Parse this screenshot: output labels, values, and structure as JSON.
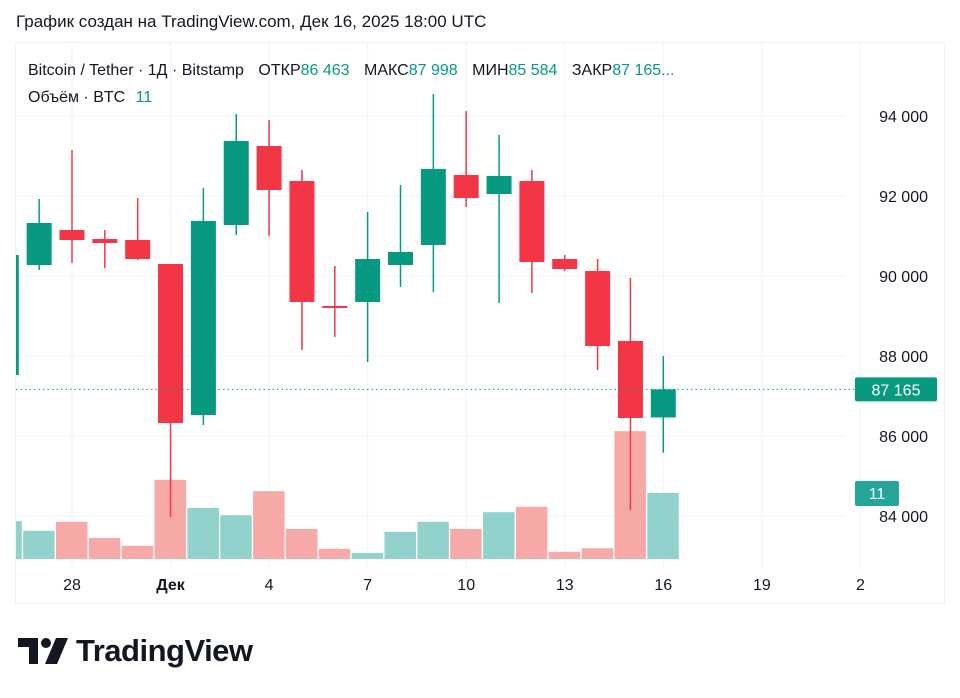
{
  "caption": "График создан на TradingView.com, Дек 16, 2025 18:00 UTC",
  "legend": {
    "symbol": "Bitcoin / Tether · 1Д · Bitstamp",
    "open_label": "ОТКР",
    "open": "86 463",
    "high_label": "МАКС",
    "high": "87 998",
    "low_label": "МИН",
    "low": "85 584",
    "close_label": "ЗАКР",
    "close": "87 165...",
    "volume_label": "Объём · BTC",
    "volume": "11"
  },
  "brand": "TradingView",
  "colors": {
    "up": "#089981",
    "down": "#F23645",
    "up_volume": "#92D2CC",
    "down_volume": "#F7A9A7"
  },
  "chart_data": {
    "type": "candlestick",
    "title": "",
    "y_axis": {
      "ticks": [
        84000,
        86000,
        88000,
        90000,
        92000,
        94000
      ],
      "tick_labels": [
        "84 000",
        "86 000",
        "88 000",
        "90 000",
        "92 000",
        "94 000"
      ],
      "position": "right"
    },
    "x_axis": {
      "tick_labels": [
        "28",
        "Дек",
        "4",
        "7",
        "10",
        "13",
        "16",
        "19",
        "2"
      ]
    },
    "last_price_label": "87 165",
    "last_volume_label": "11",
    "grid": true,
    "candles": [
      {
        "date": "Nov 26",
        "o": 87525,
        "h": 90525,
        "l": 87525,
        "c": 90525,
        "v": 6.3
      },
      {
        "date": "Nov 27",
        "o": 90275,
        "h": 91925,
        "l": 90150,
        "c": 91325,
        "v": 4.7
      },
      {
        "date": "Nov 28",
        "o": 91150,
        "h": 93150,
        "l": 90325,
        "c": 90900,
        "v": 6.2
      },
      {
        "date": "Nov 29",
        "o": 90925,
        "h": 91150,
        "l": 90200,
        "c": 90825,
        "v": 3.5
      },
      {
        "date": "Nov 30",
        "o": 90900,
        "h": 91950,
        "l": 90400,
        "c": 90425,
        "v": 2.2
      },
      {
        "date": "Dec 1",
        "o": 90300,
        "h": 90300,
        "l": 83975,
        "c": 86325,
        "v": 13.2
      },
      {
        "date": "Dec 2",
        "o": 86525,
        "h": 92200,
        "l": 86275,
        "c": 91375,
        "v": 8.5
      },
      {
        "date": "Dec 3",
        "o": 91275,
        "h": 94050,
        "l": 91025,
        "c": 93375,
        "v": 7.3
      },
      {
        "date": "Dec 4",
        "o": 93250,
        "h": 93900,
        "l": 91000,
        "c": 92150,
        "v": 11.3
      },
      {
        "date": "Dec 5",
        "o": 92375,
        "h": 92650,
        "l": 88150,
        "c": 89350,
        "v": 5.0
      },
      {
        "date": "Dec 6",
        "o": 89250,
        "h": 90250,
        "l": 88475,
        "c": 89200,
        "v": 1.7
      },
      {
        "date": "Dec 7",
        "o": 89350,
        "h": 91600,
        "l": 87850,
        "c": 90425,
        "v": 1.0
      },
      {
        "date": "Dec 8",
        "o": 90275,
        "h": 92275,
        "l": 89725,
        "c": 90600,
        "v": 4.5
      },
      {
        "date": "Dec 9",
        "o": 90775,
        "h": 94550,
        "l": 89600,
        "c": 92675,
        "v": 6.2
      },
      {
        "date": "Dec 10",
        "o": 92525,
        "h": 94125,
        "l": 91725,
        "c": 91950,
        "v": 5.0
      },
      {
        "date": "Dec 11",
        "o": 92050,
        "h": 93525,
        "l": 89325,
        "c": 92500,
        "v": 7.8
      },
      {
        "date": "Dec 12",
        "o": 92375,
        "h": 92650,
        "l": 89575,
        "c": 90350,
        "v": 8.7
      },
      {
        "date": "Dec 13",
        "o": 90425,
        "h": 90525,
        "l": 90125,
        "c": 90175,
        "v": 1.2
      },
      {
        "date": "Dec 14",
        "o": 90125,
        "h": 90425,
        "l": 87650,
        "c": 88250,
        "v": 1.8
      },
      {
        "date": "Dec 15",
        "o": 88375,
        "h": 89950,
        "l": 84150,
        "c": 86450,
        "v": 21.3
      },
      {
        "date": "Dec 16",
        "o": 86463,
        "h": 87998,
        "l": 85584,
        "c": 87165,
        "v": 11
      }
    ]
  }
}
